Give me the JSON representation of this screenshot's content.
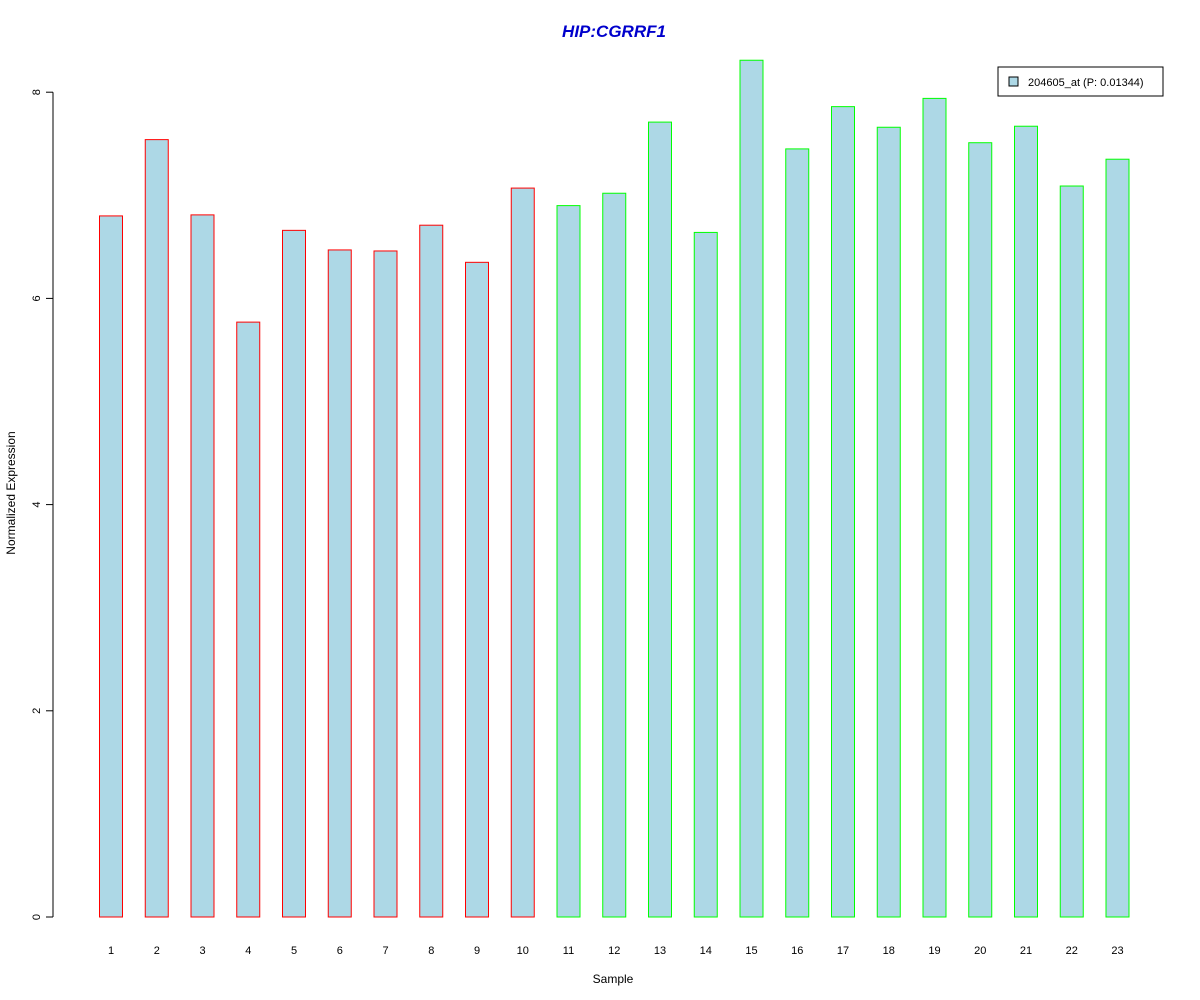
{
  "chart_data": {
    "type": "bar",
    "title": "HIP:CGRRF1",
    "xlabel": "Sample",
    "ylabel": "Normalized Expression",
    "categories": [
      "1",
      "2",
      "3",
      "4",
      "5",
      "6",
      "7",
      "8",
      "9",
      "10",
      "11",
      "12",
      "13",
      "14",
      "15",
      "16",
      "17",
      "18",
      "19",
      "20",
      "21",
      "22",
      "23"
    ],
    "values": [
      6.8,
      7.54,
      6.81,
      5.77,
      6.66,
      6.47,
      6.46,
      6.71,
      6.35,
      7.07,
      6.9,
      7.02,
      7.71,
      6.64,
      8.31,
      7.45,
      7.86,
      7.66,
      7.94,
      7.51,
      7.67,
      7.09,
      7.35
    ],
    "groups": [
      "red",
      "red",
      "red",
      "red",
      "red",
      "red",
      "red",
      "red",
      "red",
      "red",
      "green",
      "green",
      "green",
      "green",
      "green",
      "green",
      "green",
      "green",
      "green",
      "green",
      "green",
      "green",
      "green"
    ],
    "y_ticks": [
      "0",
      "2",
      "4",
      "6",
      "8"
    ],
    "ylim": [
      0,
      8.4
    ],
    "legend": {
      "entries": [
        "204605_at (P: 0.01344)"
      ],
      "position": "top-right"
    },
    "colors": {
      "title": "#0000cc",
      "bar_fill": "#add8e6",
      "border_red": "#ff0000",
      "border_green": "#00ff00"
    },
    "grid": false
  }
}
